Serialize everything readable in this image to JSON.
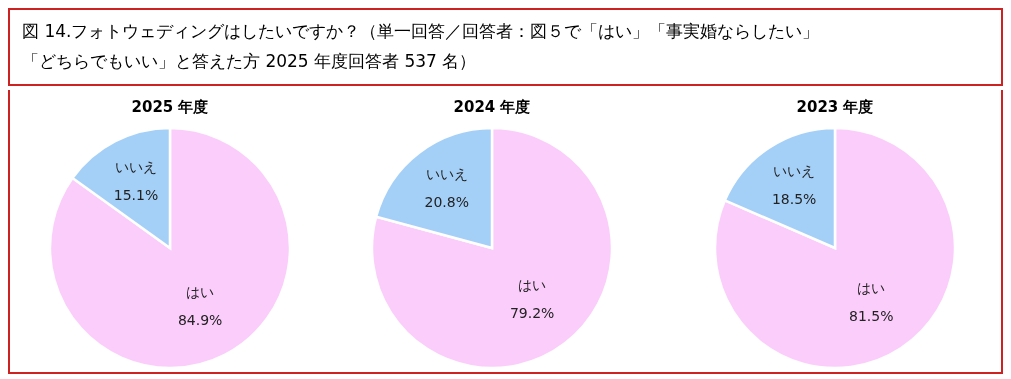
{
  "chart_data": [
    {
      "type": "pie",
      "title": "2025 年度",
      "annotations": [
        "図 14.フォトウェディングはしたいですか？（単一回答／回答者：図５で「はい」「事実婚ならしたい」「どちらでもいい」と答えた方 2025 年度回答者 537 名）"
      ],
      "categories": [
        "はい",
        "いいえ"
      ],
      "values": [
        84.9,
        15.1
      ],
      "value_labels": [
        "84.9%",
        "15.1%"
      ],
      "colors": [
        "#fbcdfb",
        "#a4d0f8"
      ]
    },
    {
      "type": "pie",
      "title": "2024 年度",
      "categories": [
        "はい",
        "いいえ"
      ],
      "values": [
        79.2,
        20.8
      ],
      "value_labels": [
        "79.2%",
        "20.8%"
      ],
      "colors": [
        "#fbcdfb",
        "#a4d0f8"
      ]
    },
    {
      "type": "pie",
      "title": "2023 年度",
      "categories": [
        "はい",
        "いいえ"
      ],
      "values": [
        81.5,
        18.5
      ],
      "value_labels": [
        "81.5%",
        "18.5%"
      ],
      "colors": [
        "#fbcdfb",
        "#a4d0f8"
      ]
    }
  ]
}
